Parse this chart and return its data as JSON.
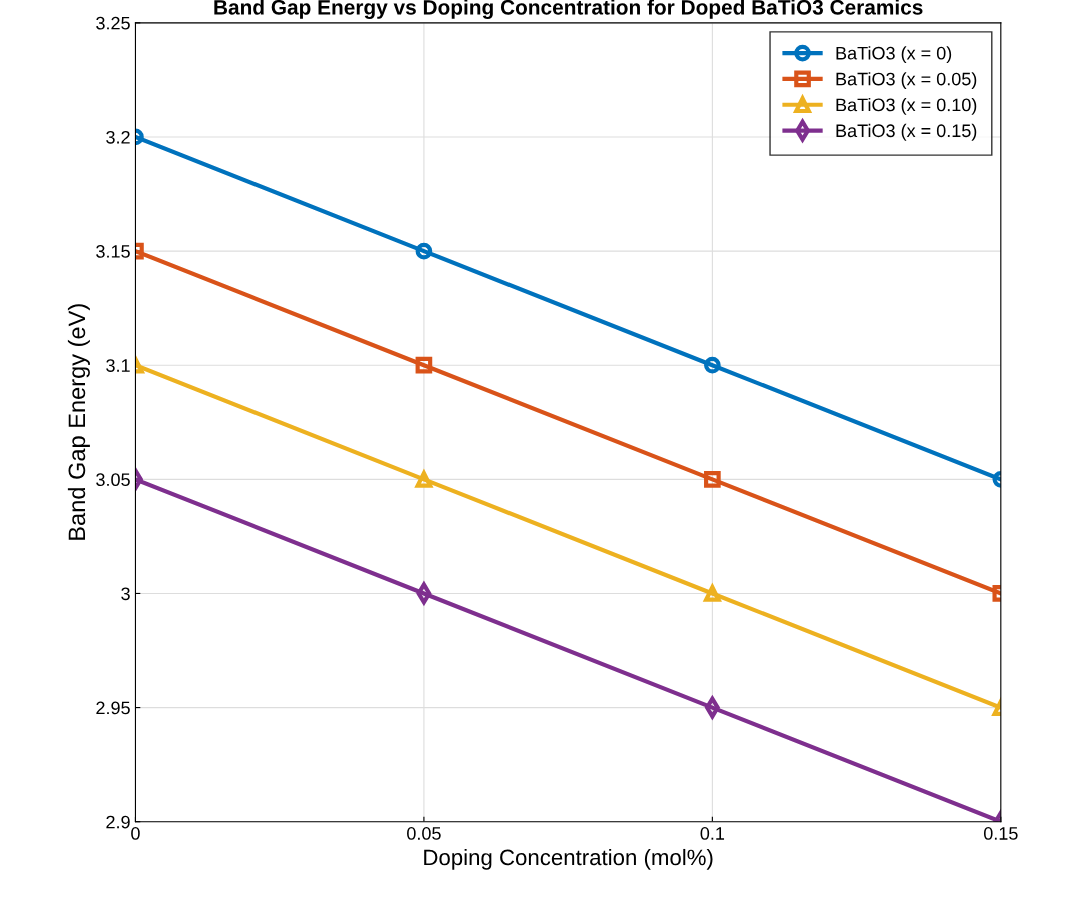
{
  "chart_data": {
    "type": "line",
    "title": "Band Gap Energy vs Doping Concentration for Doped BaTiO3 Ceramics",
    "xlabel": "Doping Concentration (mol%)",
    "ylabel": "Band Gap Energy (eV)",
    "x": [
      0,
      0.05,
      0.1,
      0.15
    ],
    "series": [
      {
        "name": "BaTiO3 (x = 0)",
        "color": "#0072bd",
        "marker": "circle",
        "values": [
          3.2,
          3.15,
          3.1,
          3.05
        ]
      },
      {
        "name": "BaTiO3 (x = 0.05)",
        "color": "#d95319",
        "marker": "square",
        "values": [
          3.15,
          3.1,
          3.05,
          3.0
        ]
      },
      {
        "name": "BaTiO3 (x = 0.10)",
        "color": "#edb120",
        "marker": "triangle",
        "values": [
          3.1,
          3.05,
          3.0,
          2.95
        ]
      },
      {
        "name": "BaTiO3 (x = 0.15)",
        "color": "#7e2f8e",
        "marker": "diamond",
        "values": [
          3.05,
          3.0,
          2.95,
          2.9
        ]
      }
    ],
    "xlim": [
      0,
      0.15
    ],
    "ylim": [
      2.9,
      3.25
    ],
    "xticks": [
      0,
      0.05,
      0.1,
      0.15
    ],
    "yticks": [
      2.9,
      2.95,
      {
        "value": 3,
        "label": "3"
      },
      3.05,
      3.1,
      3.15,
      3.2,
      3.25
    ],
    "grid": true,
    "legend": "top right",
    "line_style": "solid"
  }
}
